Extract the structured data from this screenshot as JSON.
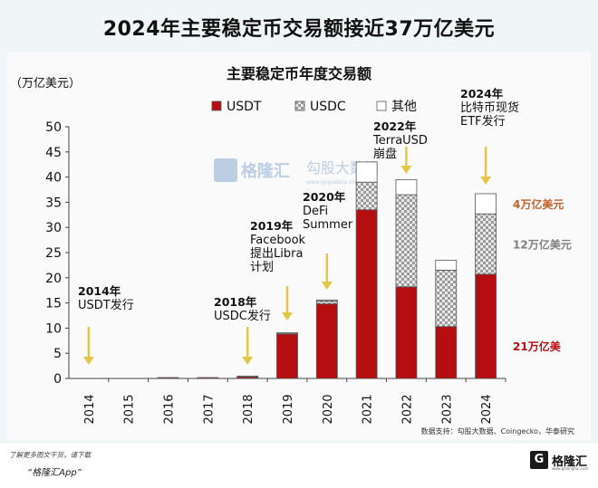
{
  "headline": "2024年主要稳定币交易额接近37万亿美元",
  "chart_data": {
    "type": "bar",
    "stacked": true,
    "title": "主要稳定币年度交易额",
    "ylabel": "（万亿美元）",
    "ylim": [
      0,
      50
    ],
    "yticks": [
      0,
      5,
      10,
      15,
      20,
      25,
      30,
      35,
      40,
      45,
      50
    ],
    "categories": [
      "2014",
      "2015",
      "2016",
      "2017",
      "2018",
      "2019",
      "2020",
      "2021",
      "2022",
      "2023",
      "2024"
    ],
    "series": [
      {
        "name": "USDT",
        "color": "#b50d10",
        "pattern": "solid",
        "values": [
          0,
          0,
          0.05,
          0.15,
          0.3,
          8.8,
          14.8,
          33.5,
          18.2,
          10.3,
          20.7
        ]
      },
      {
        "name": "USDC",
        "color": "#c8c8c8",
        "pattern": "checker",
        "values": [
          0,
          0,
          0,
          0,
          0.02,
          0.1,
          0.6,
          5.5,
          18.3,
          11.2,
          12.0
        ]
      },
      {
        "name": "其他",
        "color": "#ffffff",
        "pattern": "hollow",
        "values": [
          0,
          0,
          0,
          0,
          0,
          0.1,
          0.2,
          4.0,
          3.0,
          2.0,
          4.0
        ]
      }
    ],
    "legend_position": "top",
    "grid": false,
    "annotations": [
      {
        "target": "2014",
        "lines": [
          "2014年",
          "USDT发行"
        ]
      },
      {
        "target": "2018",
        "lines": [
          "2018年",
          "USDC发行"
        ]
      },
      {
        "target": "2019",
        "lines": [
          "2019年",
          "Facebook",
          "提出Libra",
          "计划"
        ]
      },
      {
        "target": "2020",
        "lines": [
          "2020年",
          "DeFi",
          "Summer"
        ]
      },
      {
        "target": "2022",
        "lines": [
          "2022年",
          "TerraUSD",
          "崩盘"
        ]
      },
      {
        "target": "2024",
        "lines": [
          "2024年",
          "比特币现货",
          "ETF发行"
        ]
      }
    ],
    "segment_labels": [
      {
        "text": "4万亿美元",
        "color": "#c0602a",
        "value": 34.7
      },
      {
        "text": "12万亿美元",
        "color": "#808080",
        "value": 26.7
      },
      {
        "text": "21万亿美",
        "color": "#b50d10",
        "value": 6.5
      }
    ]
  },
  "watermark": {
    "brand": "格隆汇",
    "sub": "勾股大数据",
    "url": "www.gogudata.com"
  },
  "source": "数据支持：勾股大数据、Coingecko，华泰研究",
  "footer": {
    "note": "了解更多图文干货，请下载",
    "app": "“格隆汇App”",
    "brand": "格隆汇",
    "brand_mark": "G",
    "brand_url": "www.gelonghui.com"
  }
}
